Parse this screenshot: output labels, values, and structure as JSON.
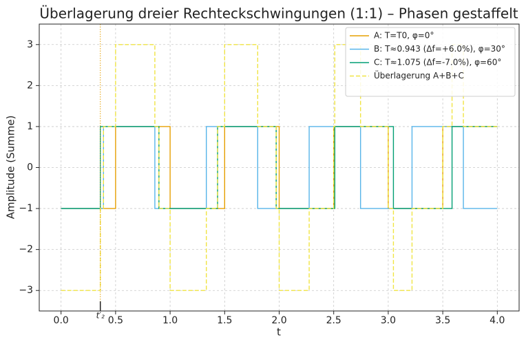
{
  "chart_data": {
    "type": "step",
    "title": "Überlagerung dreier Rechteckschwingungen (1:1) – Phasen gestaffelt",
    "x_label": "t",
    "y_label": "Amplitude (Summe)",
    "x": [
      0,
      0.36,
      0.389,
      0.5,
      0.86,
      0.8975,
      1.0,
      1.332,
      1.435,
      1.5,
      1.803,
      1.9725,
      2.0,
      2.275,
      2.5,
      2.51,
      2.746,
      3.0,
      3.0475,
      3.218,
      3.5,
      3.585,
      3.689,
      4.0
    ],
    "series": [
      {
        "name": "A: T=T0, φ=0°",
        "color": "#e69f00",
        "linestyle": "solid",
        "values": [
          -1,
          -1,
          -1,
          1,
          1,
          1,
          -1,
          -1,
          -1,
          1,
          1,
          1,
          -1,
          -1,
          1,
          1,
          1,
          -1,
          -1,
          -1,
          1,
          1,
          1,
          1
        ]
      },
      {
        "name": "B: T≈0.943 (Δf=+6.0%), φ=30°",
        "color": "#56b4e9",
        "linestyle": "solid",
        "values": [
          -1,
          -1,
          1,
          1,
          -1,
          -1,
          -1,
          1,
          1,
          1,
          -1,
          -1,
          -1,
          1,
          1,
          1,
          -1,
          -1,
          -1,
          1,
          1,
          1,
          -1,
          -1
        ]
      },
      {
        "name": "C: T≈1.075 (Δf=-7.0%), φ=60°",
        "color": "#009e73",
        "linestyle": "solid",
        "values": [
          -1,
          1,
          1,
          1,
          1,
          -1,
          -1,
          -1,
          1,
          1,
          1,
          -1,
          -1,
          -1,
          -1,
          1,
          1,
          1,
          -1,
          -1,
          -1,
          1,
          1,
          1
        ]
      },
      {
        "name": "Überlagerung A+B+C",
        "color": "#f0e442",
        "linestyle": "dashed",
        "values": [
          -3,
          -1,
          1,
          3,
          1,
          -1,
          -3,
          -1,
          1,
          3,
          1,
          -1,
          -3,
          -1,
          1,
          3,
          1,
          -1,
          -3,
          -1,
          1,
          3,
          1,
          1
        ]
      }
    ],
    "annotations": [
      {
        "text": "t′₂",
        "x": 0.36,
        "color": "#e69f00"
      }
    ],
    "xlim": [
      -0.2,
      4.2
    ],
    "ylim": [
      -3.5,
      3.5
    ],
    "xticks": [
      {
        "value": 0,
        "label": "0.0"
      },
      0.5,
      {
        "value": 1,
        "label": "1.0"
      },
      1.5,
      {
        "value": 2,
        "label": "2.0"
      },
      2.5,
      {
        "value": 3,
        "label": "3.0"
      },
      3.5,
      {
        "value": 4,
        "label": "4.0"
      }
    ],
    "yticks": [
      {
        "value": -3,
        "label": "−3"
      },
      {
        "value": -2,
        "label": "−2"
      },
      {
        "value": -1,
        "label": "−1"
      },
      0,
      1,
      2,
      3
    ],
    "grid": true,
    "legend": "upper right"
  }
}
